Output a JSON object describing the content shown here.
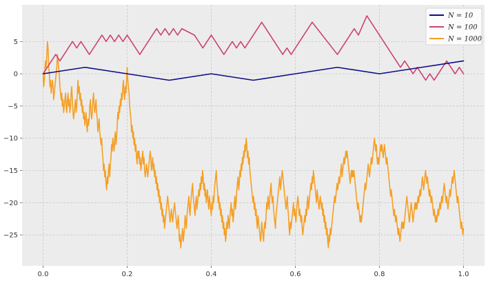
{
  "chart_data": {
    "type": "line",
    "title": "",
    "xlabel": "",
    "ylabel": "",
    "xlim": [
      -0.05,
      1.05
    ],
    "ylim": [
      -29.8,
      10.7
    ],
    "x_ticks": [
      0.0,
      0.2,
      0.4,
      0.6,
      0.8,
      1.0
    ],
    "x_tick_labels": [
      "0.0",
      "0.2",
      "0.4",
      "0.6",
      "0.8",
      "1.0"
    ],
    "y_ticks": [
      5,
      0,
      -5,
      -10,
      -15,
      -20,
      -25
    ],
    "y_tick_labels": [
      "5",
      "0",
      "−5",
      "−10",
      "−15",
      "−20",
      "−25"
    ],
    "grid": true,
    "legend_position": "top-right",
    "colors": {
      "background": "#ececec",
      "grid": "#c9c9c9",
      "n10": "#0c0a86",
      "n100": "#cb4173",
      "n1000": "#f59f24"
    },
    "series": [
      {
        "name": "N = 10",
        "color": "#0c0a86",
        "x": [
          0.0,
          0.1,
          0.2,
          0.3,
          0.4,
          0.5,
          0.6,
          0.7,
          0.8,
          0.9,
          1.0
        ],
        "y": [
          0,
          1,
          0,
          -1,
          0,
          -1,
          0,
          1,
          0,
          1,
          2
        ]
      },
      {
        "name": "N = 100",
        "color": "#cb4173",
        "x": [
          0.0,
          0.03,
          0.04,
          0.07,
          0.08,
          0.09,
          0.11,
          0.14,
          0.15,
          0.16,
          0.17,
          0.18,
          0.19,
          0.2,
          0.23,
          0.27,
          0.28,
          0.29,
          0.3,
          0.31,
          0.32,
          0.33,
          0.36,
          0.38,
          0.4,
          0.43,
          0.45,
          0.46,
          0.47,
          0.48,
          0.52,
          0.57,
          0.58,
          0.59,
          0.64,
          0.7,
          0.74,
          0.75,
          0.77,
          0.85,
          0.86,
          0.88,
          0.89,
          0.91,
          0.92,
          0.93,
          0.96,
          0.98,
          0.99,
          1.0
        ],
        "y": [
          0,
          3,
          2,
          5,
          4,
          5,
          3,
          6,
          5,
          6,
          5,
          6,
          5,
          6,
          3,
          7,
          6,
          7,
          6,
          7,
          6,
          7,
          6,
          4,
          6,
          3,
          5,
          4,
          5,
          4,
          8,
          3,
          4,
          3,
          8,
          3,
          7,
          6,
          9,
          1,
          2,
          0,
          1,
          -1,
          0,
          -1,
          2,
          0,
          1,
          0
        ]
      },
      {
        "name": "N = 1000",
        "color": "#f59f24",
        "x_start": 0.0,
        "x_step": 0.001,
        "y": [
          0,
          -2,
          -1,
          1,
          2,
          1,
          3,
          5,
          4,
          1,
          0,
          -2,
          -1,
          -3,
          -2,
          -1,
          -2,
          -4,
          -3,
          -2,
          -1,
          0,
          1,
          3,
          2,
          1,
          0,
          -2,
          -3,
          -4,
          -3,
          -5,
          -4,
          -6,
          -5,
          -4,
          -3,
          -5,
          -6,
          -4,
          -3,
          -5,
          -4,
          -6,
          -5,
          -3,
          -2,
          -4,
          -6,
          -7,
          -6,
          -5,
          -4,
          -6,
          -5,
          -3,
          -1,
          -3,
          -2,
          -4,
          -3,
          -5,
          -4,
          -6,
          -5,
          -7,
          -6,
          -8,
          -7,
          -6,
          -8,
          -9,
          -7,
          -8,
          -7,
          -5,
          -4,
          -6,
          -7,
          -6,
          -4,
          -3,
          -5,
          -6,
          -5,
          -4,
          -6,
          -7,
          -9,
          -8,
          -7,
          -9,
          -10,
          -11,
          -10,
          -12,
          -13,
          -15,
          -14,
          -16,
          -15,
          -17,
          -18,
          -16,
          -17,
          -15,
          -14,
          -16,
          -14,
          -13,
          -11,
          -12,
          -10,
          -11,
          -12,
          -10,
          -9,
          -11,
          -10,
          -8,
          -6,
          -7,
          -5,
          -6,
          -4,
          -5,
          -3,
          -4,
          -2,
          -1,
          -3,
          -4,
          -2,
          -3,
          -1,
          1,
          -1,
          -2,
          -3,
          -5,
          -6,
          -7,
          -9,
          -8,
          -10,
          -9,
          -11,
          -10,
          -12,
          -11,
          -13,
          -14,
          -12,
          -13,
          -12,
          -14,
          -13,
          -15,
          -14,
          -13,
          -12,
          -14,
          -13,
          -15,
          -16,
          -15,
          -14,
          -15,
          -16,
          -15,
          -14,
          -13,
          -12,
          -13,
          -15,
          -14,
          -13,
          -15,
          -14,
          -16,
          -15,
          -17,
          -16,
          -18,
          -17,
          -19,
          -18,
          -20,
          -19,
          -21,
          -20,
          -22,
          -21,
          -23,
          -22,
          -24,
          -23,
          -22,
          -21,
          -20,
          -19,
          -20,
          -21,
          -22,
          -23,
          -22,
          -21,
          -22,
          -23,
          -22,
          -21,
          -20,
          -21,
          -22,
          -23,
          -24,
          -23,
          -22,
          -24,
          -26,
          -25,
          -27,
          -26,
          -25,
          -24,
          -26,
          -25,
          -24,
          -22,
          -23,
          -24,
          -22,
          -21,
          -20,
          -19,
          -21,
          -22,
          -20,
          -19,
          -18,
          -17,
          -19,
          -20,
          -21,
          -22,
          -20,
          -19,
          -21,
          -20,
          -19,
          -18,
          -19,
          -17,
          -18,
          -16,
          -17,
          -15,
          -16,
          -18,
          -17,
          -19,
          -18,
          -20,
          -19,
          -18,
          -20,
          -21,
          -19,
          -20,
          -21,
          -22,
          -20,
          -21,
          -19,
          -20,
          -18,
          -17,
          -16,
          -15,
          -17,
          -18,
          -20,
          -19,
          -21,
          -20,
          -22,
          -21,
          -23,
          -22,
          -24,
          -23,
          -25,
          -24,
          -26,
          -25,
          -23,
          -24,
          -22,
          -23,
          -24,
          -22,
          -21,
          -20,
          -22,
          -21,
          -23,
          -22,
          -20,
          -19,
          -21,
          -20,
          -18,
          -17,
          -16,
          -18,
          -17,
          -15,
          -16,
          -14,
          -15,
          -13,
          -14,
          -12,
          -13,
          -11,
          -12,
          -10,
          -11,
          -13,
          -12,
          -14,
          -13,
          -15,
          -16,
          -17,
          -18,
          -19,
          -20,
          -19,
          -21,
          -20,
          -22,
          -21,
          -23,
          -24,
          -22,
          -23,
          -24,
          -25,
          -26,
          -25,
          -23,
          -24,
          -25,
          -26,
          -24,
          -23,
          -24,
          -22,
          -20,
          -21,
          -19,
          -20,
          -21,
          -19,
          -18,
          -17,
          -19,
          -20,
          -19,
          -21,
          -22,
          -23,
          -24,
          -22,
          -21,
          -20,
          -19,
          -18,
          -17,
          -16,
          -18,
          -17,
          -16,
          -15,
          -16,
          -17,
          -18,
          -19,
          -20,
          -21,
          -20,
          -19,
          -21,
          -22,
          -24,
          -25,
          -23,
          -24,
          -23,
          -22,
          -21,
          -20,
          -22,
          -21,
          -22,
          -23,
          -21,
          -20,
          -19,
          -20,
          -22,
          -21,
          -22,
          -23,
          -22,
          -24,
          -25,
          -24,
          -23,
          -22,
          -23,
          -21,
          -22,
          -20,
          -19,
          -21,
          -20,
          -19,
          -18,
          -17,
          -18,
          -16,
          -17,
          -15,
          -16,
          -17,
          -18,
          -19,
          -20,
          -18,
          -19,
          -20,
          -21,
          -20,
          -19,
          -20,
          -21,
          -20,
          -22,
          -21,
          -23,
          -22,
          -24,
          -23,
          -25,
          -24,
          -26,
          -27,
          -25,
          -26,
          -24,
          -25,
          -24,
          -23,
          -22,
          -21,
          -20,
          -19,
          -20,
          -19,
          -18,
          -17,
          -18,
          -17,
          -16,
          -17,
          -16,
          -15,
          -14,
          -16,
          -15,
          -14,
          -13,
          -14,
          -13,
          -12,
          -13,
          -12,
          -13,
          -14,
          -15,
          -16,
          -17,
          -16,
          -15,
          -16,
          -15,
          -16,
          -15,
          -16,
          -17,
          -18,
          -19,
          -20,
          -21,
          -20,
          -21,
          -22,
          -23,
          -22,
          -23,
          -22,
          -21,
          -20,
          -19,
          -18,
          -17,
          -18,
          -17,
          -16,
          -15,
          -14,
          -15,
          -16,
          -15,
          -14,
          -13,
          -14,
          -13,
          -12,
          -11,
          -10,
          -11,
          -12,
          -11,
          -13,
          -14,
          -13,
          -14,
          -13,
          -12,
          -11,
          -12,
          -11,
          -12,
          -13,
          -12,
          -11,
          -12,
          -13,
          -14,
          -13,
          -14,
          -15,
          -16,
          -17,
          -18,
          -19,
          -18,
          -19,
          -20,
          -21,
          -22,
          -21,
          -22,
          -23,
          -22,
          -23,
          -24,
          -25,
          -24,
          -25,
          -26,
          -25,
          -24,
          -23,
          -24,
          -23,
          -24,
          -23,
          -22,
          -21,
          -20,
          -19,
          -20,
          -21,
          -22,
          -23,
          -22,
          -21,
          -20,
          -21,
          -22,
          -23,
          -22,
          -21,
          -20,
          -21,
          -20,
          -21,
          -20,
          -19,
          -20,
          -19,
          -18,
          -19,
          -18,
          -17,
          -16,
          -17,
          -18,
          -17,
          -16,
          -15,
          -16,
          -17,
          -16,
          -17,
          -18,
          -19,
          -18,
          -19,
          -20,
          -19,
          -20,
          -21,
          -22,
          -21,
          -22,
          -23,
          -22,
          -23,
          -22,
          -21,
          -22,
          -21,
          -20,
          -21,
          -20,
          -19,
          -20,
          -19,
          -18,
          -17,
          -18,
          -19,
          -20,
          -19,
          -20,
          -21,
          -20,
          -19,
          -18,
          -19,
          -18,
          -17,
          -16,
          -17,
          -16,
          -15,
          -16,
          -17,
          -18,
          -19,
          -20,
          -19,
          -20,
          -21,
          -22,
          -23,
          -24,
          -23,
          -24,
          -25
        ],
        "y_end": -24
      }
    ],
    "legend": [
      {
        "label": "N = 10",
        "color": "#0c0a86"
      },
      {
        "label": "N = 100",
        "color": "#cb4173"
      },
      {
        "label": "N = 1000",
        "color": "#f59f24"
      }
    ]
  }
}
